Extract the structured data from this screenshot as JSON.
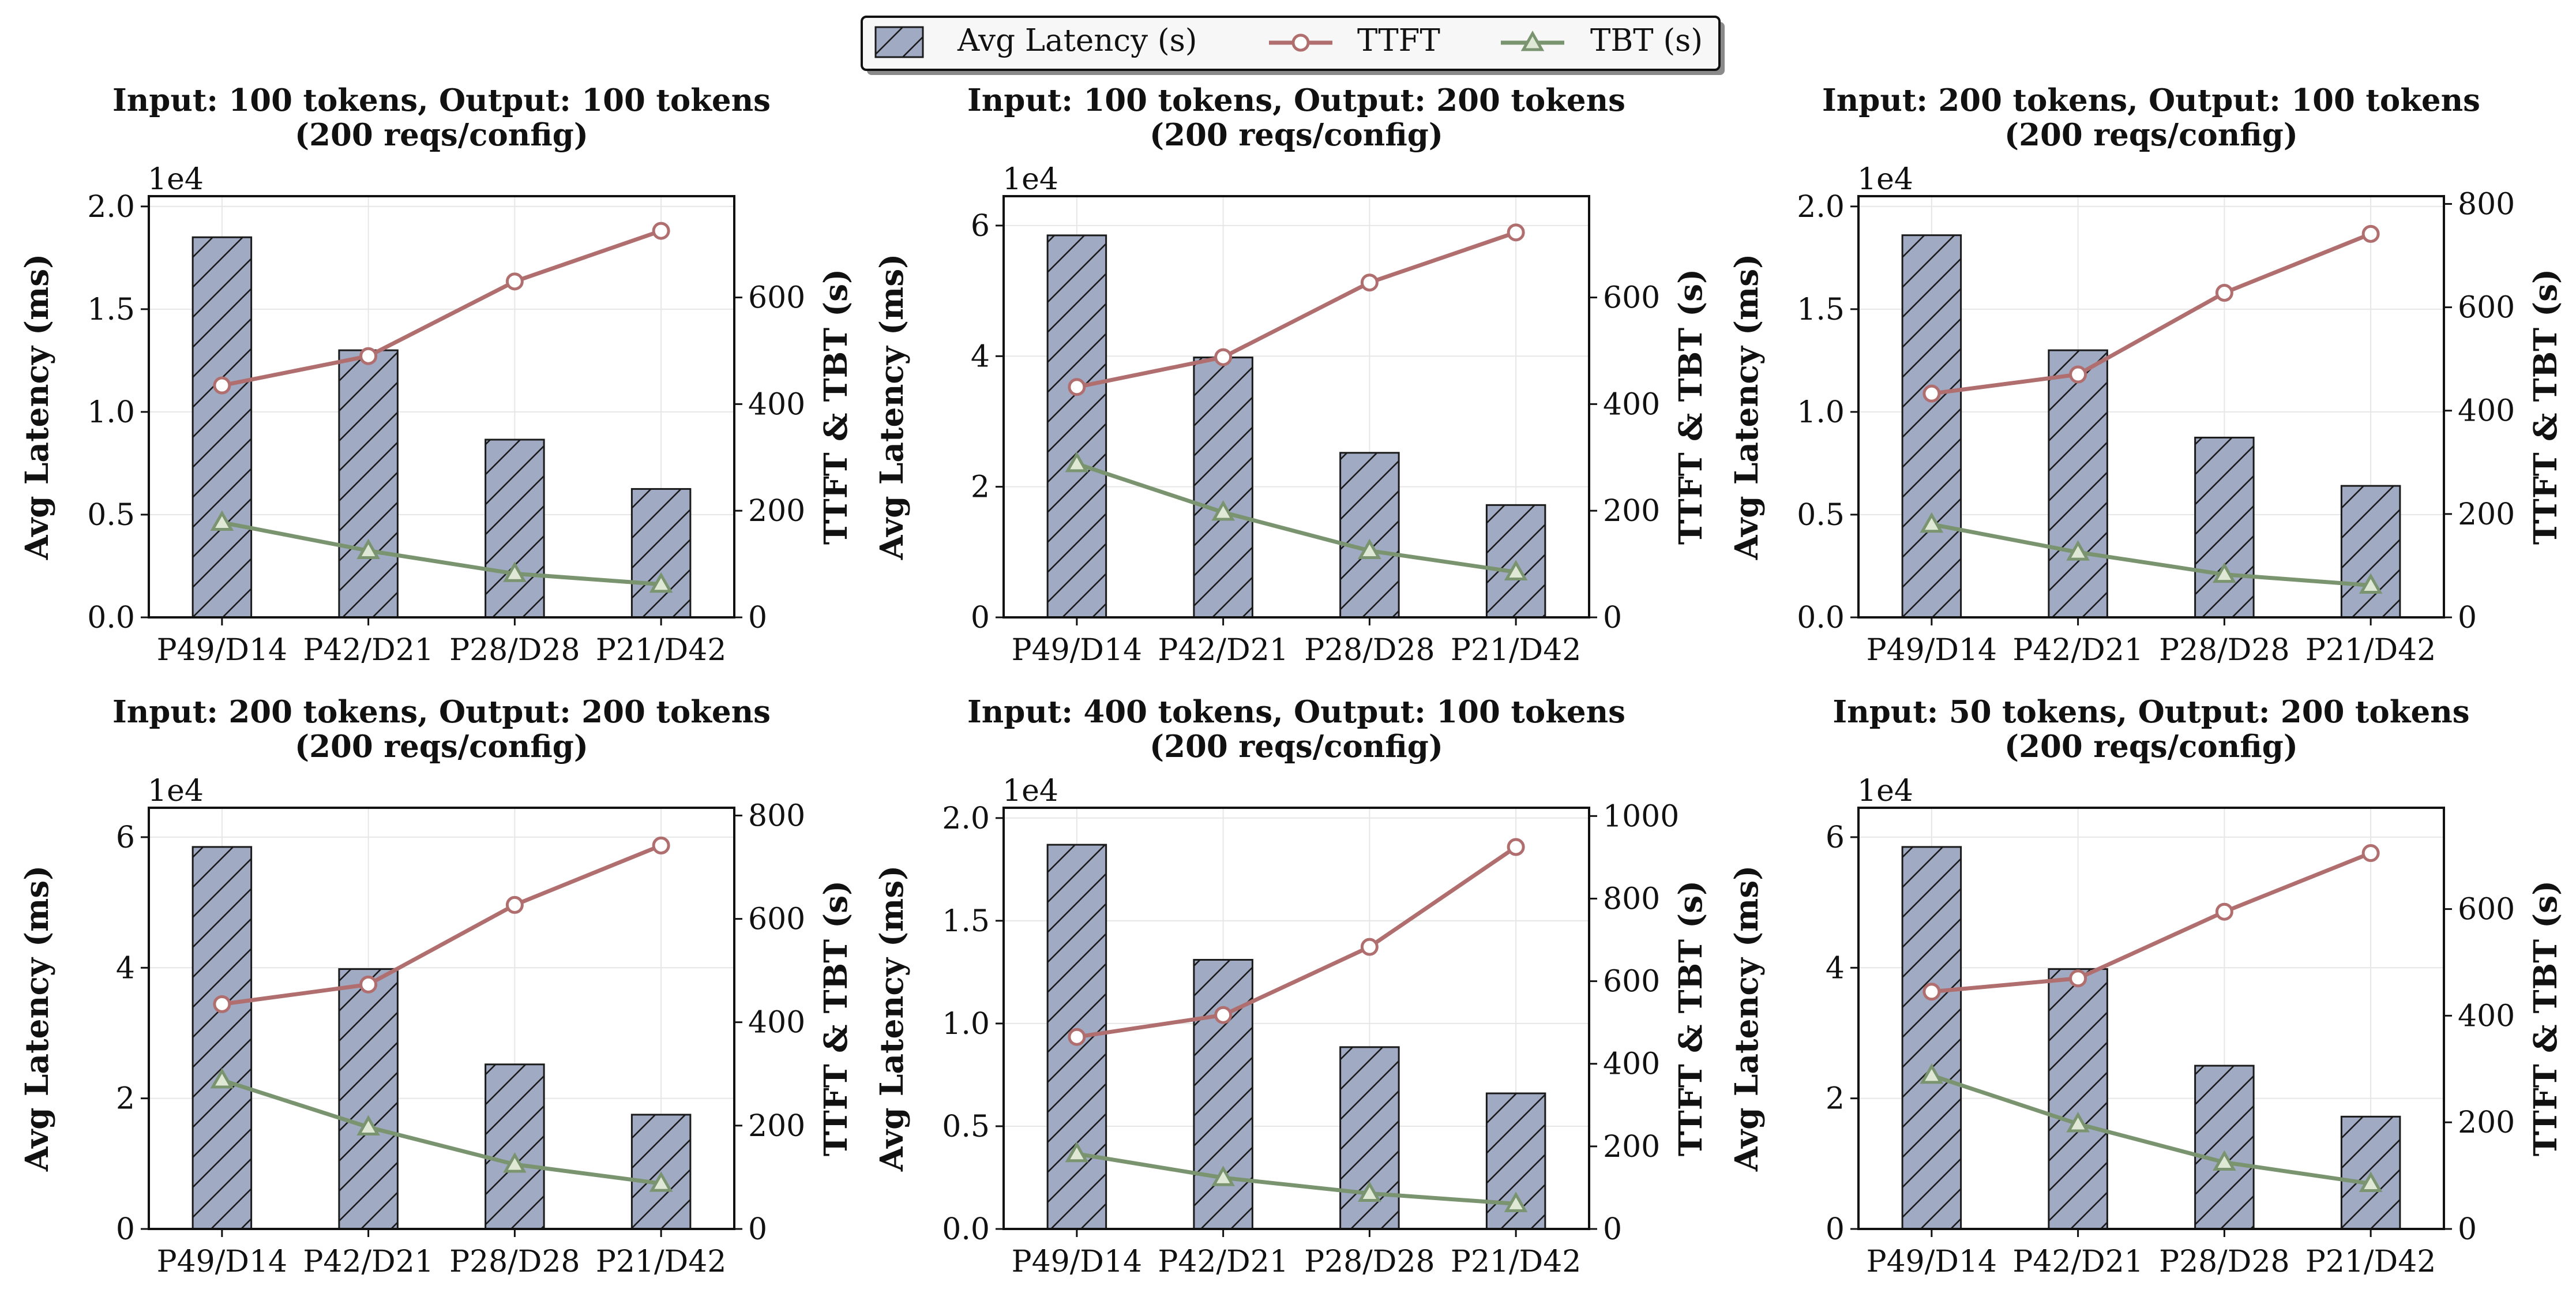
{
  "legend": {
    "items": [
      {
        "label": "Avg Latency (s)",
        "kind": "bar"
      },
      {
        "label": "TTFT",
        "kind": "line-circle"
      },
      {
        "label": "TBT (s)",
        "kind": "line-triangle"
      }
    ]
  },
  "colors": {
    "bar_fill": "#a0aac3",
    "bar_edge": "#1a1a1a",
    "ttft": "#b06e6e",
    "ttft_marker_fill": "#ffffff",
    "tbt": "#7a9470",
    "tbt_marker_fill": "#dfe8d4",
    "grid": "#e6e6e6"
  },
  "chart_data": [
    {
      "type": "bar",
      "title_line1": "Input: 100 tokens, Output: 100 tokens",
      "title_line2": "(200 reqs/config)",
      "categories": [
        "P49/D14",
        "P42/D21",
        "P28/D28",
        "P21/D42"
      ],
      "ylabel": "Avg Latency (ms)",
      "y2label": "TTFT & TBT (s)",
      "scale_label": "1e4",
      "ylim": [
        0,
        2.05
      ],
      "yticks": [
        "0.0",
        "0.5",
        "1.0",
        "1.5",
        "2.0"
      ],
      "ytick_values": [
        0,
        0.5,
        1.0,
        1.5,
        2.0
      ],
      "y2lim": [
        0,
        790
      ],
      "y2ticks": [
        "0",
        "200",
        "400",
        "600"
      ],
      "y2tick_values": [
        0,
        200,
        400,
        600
      ],
      "series": [
        {
          "name": "Avg Latency (s)",
          "axis": "left",
          "kind": "bar",
          "values": [
            1.85,
            1.3,
            0.865,
            0.625
          ]
        },
        {
          "name": "TTFT",
          "axis": "right",
          "kind": "line",
          "values": [
            435,
            490,
            630,
            725
          ]
        },
        {
          "name": "TBT (s)",
          "axis": "right",
          "kind": "line",
          "values": [
            178,
            125,
            82,
            62
          ]
        }
      ]
    },
    {
      "type": "bar",
      "title_line1": "Input: 100 tokens, Output: 200 tokens",
      "title_line2": "(200 reqs/config)",
      "categories": [
        "P49/D14",
        "P42/D21",
        "P28/D28",
        "P21/D42"
      ],
      "ylabel": "Avg Latency (ms)",
      "y2label": "TTFT & TBT (s)",
      "scale_label": "1e4",
      "ylim": [
        0,
        6.45
      ],
      "yticks": [
        "0",
        "2",
        "4",
        "6"
      ],
      "ytick_values": [
        0,
        2,
        4,
        6
      ],
      "y2lim": [
        0,
        790
      ],
      "y2ticks": [
        "0",
        "200",
        "400",
        "600"
      ],
      "y2tick_values": [
        0,
        200,
        400,
        600
      ],
      "series": [
        {
          "name": "Avg Latency (s)",
          "axis": "left",
          "kind": "bar",
          "values": [
            5.85,
            3.98,
            2.52,
            1.72
          ]
        },
        {
          "name": "TTFT",
          "axis": "right",
          "kind": "line",
          "values": [
            432,
            488,
            628,
            722
          ]
        },
        {
          "name": "TBT (s)",
          "axis": "right",
          "kind": "line",
          "values": [
            288,
            197,
            125,
            85
          ]
        }
      ]
    },
    {
      "type": "bar",
      "title_line1": "Input: 200 tokens, Output: 100 tokens",
      "title_line2": "(200 reqs/config)",
      "categories": [
        "P49/D14",
        "P42/D21",
        "P28/D28",
        "P21/D42"
      ],
      "ylabel": "Avg Latency (ms)",
      "y2label": "TTFT & TBT (s)",
      "scale_label": "1e4",
      "ylim": [
        0,
        2.05
      ],
      "yticks": [
        "0.0",
        "0.5",
        "1.0",
        "1.5",
        "2.0"
      ],
      "ytick_values": [
        0,
        0.5,
        1.0,
        1.5,
        2.0
      ],
      "y2lim": [
        0,
        815
      ],
      "y2ticks": [
        "0",
        "200",
        "400",
        "600",
        "800"
      ],
      "y2tick_values": [
        0,
        200,
        400,
        600,
        800
      ],
      "series": [
        {
          "name": "Avg Latency (s)",
          "axis": "left",
          "kind": "bar",
          "values": [
            1.86,
            1.3,
            0.875,
            0.64
          ]
        },
        {
          "name": "TTFT",
          "axis": "right",
          "kind": "line",
          "values": [
            433,
            470,
            628,
            742
          ]
        },
        {
          "name": "TBT (s)",
          "axis": "right",
          "kind": "line",
          "values": [
            180,
            126,
            83,
            62
          ]
        }
      ]
    },
    {
      "type": "bar",
      "title_line1": "Input: 200 tokens, Output: 200 tokens",
      "title_line2": "(200 reqs/config)",
      "categories": [
        "P49/D14",
        "P42/D21",
        "P28/D28",
        "P21/D42"
      ],
      "ylabel": "Avg Latency (ms)",
      "y2label": "TTFT & TBT (s)",
      "scale_label": "1e4",
      "ylim": [
        0,
        6.45
      ],
      "yticks": [
        "0",
        "2",
        "4",
        "6"
      ],
      "ytick_values": [
        0,
        2,
        4,
        6
      ],
      "y2lim": [
        0,
        815
      ],
      "y2ticks": [
        "0",
        "200",
        "400",
        "600",
        "800"
      ],
      "y2tick_values": [
        0,
        200,
        400,
        600,
        800
      ],
      "series": [
        {
          "name": "Avg Latency (s)",
          "axis": "left",
          "kind": "bar",
          "values": [
            5.85,
            3.98,
            2.52,
            1.75
          ]
        },
        {
          "name": "TTFT",
          "axis": "right",
          "kind": "line",
          "values": [
            435,
            473,
            627,
            742
          ]
        },
        {
          "name": "TBT (s)",
          "axis": "right",
          "kind": "line",
          "values": [
            288,
            197,
            125,
            88
          ]
        }
      ]
    },
    {
      "type": "bar",
      "title_line1": "Input: 400 tokens, Output: 100 tokens",
      "title_line2": "(200 reqs/config)",
      "categories": [
        "P49/D14",
        "P42/D21",
        "P28/D28",
        "P21/D42"
      ],
      "ylabel": "Avg Latency (ms)",
      "y2label": "TTFT & TBT (s)",
      "scale_label": "1e4",
      "ylim": [
        0,
        2.05
      ],
      "yticks": [
        "0.0",
        "0.5",
        "1.0",
        "1.5",
        "2.0"
      ],
      "ytick_values": [
        0,
        0.5,
        1.0,
        1.5,
        2.0
      ],
      "y2lim": [
        0,
        1020
      ],
      "y2ticks": [
        "0",
        "200",
        "400",
        "600",
        "800",
        "1000"
      ],
      "y2tick_values": [
        0,
        200,
        400,
        600,
        800,
        1000
      ],
      "series": [
        {
          "name": "Avg Latency (s)",
          "axis": "left",
          "kind": "bar",
          "values": [
            1.87,
            1.31,
            0.885,
            0.66
          ]
        },
        {
          "name": "TTFT",
          "axis": "right",
          "kind": "line",
          "values": [
            465,
            518,
            683,
            925
          ]
        },
        {
          "name": "TBT (s)",
          "axis": "right",
          "kind": "line",
          "values": [
            182,
            124,
            86,
            61
          ]
        }
      ]
    },
    {
      "type": "bar",
      "title_line1": "Input: 50 tokens, Output: 200 tokens",
      "title_line2": "(200 reqs/config)",
      "categories": [
        "P49/D14",
        "P42/D21",
        "P28/D28",
        "P21/D42"
      ],
      "ylabel": "Avg Latency (ms)",
      "y2label": "TTFT & TBT (s)",
      "scale_label": "1e4",
      "ylim": [
        0,
        6.45
      ],
      "yticks": [
        "0",
        "2",
        "4",
        "6"
      ],
      "ytick_values": [
        0,
        2,
        4,
        6
      ],
      "y2lim": [
        0,
        790
      ],
      "y2ticks": [
        "0",
        "200",
        "400",
        "600"
      ],
      "y2tick_values": [
        0,
        200,
        400,
        600
      ],
      "series": [
        {
          "name": "Avg Latency (s)",
          "axis": "left",
          "kind": "bar",
          "values": [
            5.85,
            3.98,
            2.5,
            1.72
          ]
        },
        {
          "name": "TTFT",
          "axis": "right",
          "kind": "line",
          "values": [
            445,
            470,
            595,
            705
          ]
        },
        {
          "name": "TBT (s)",
          "axis": "right",
          "kind": "line",
          "values": [
            288,
            197,
            125,
            85
          ]
        }
      ]
    }
  ]
}
